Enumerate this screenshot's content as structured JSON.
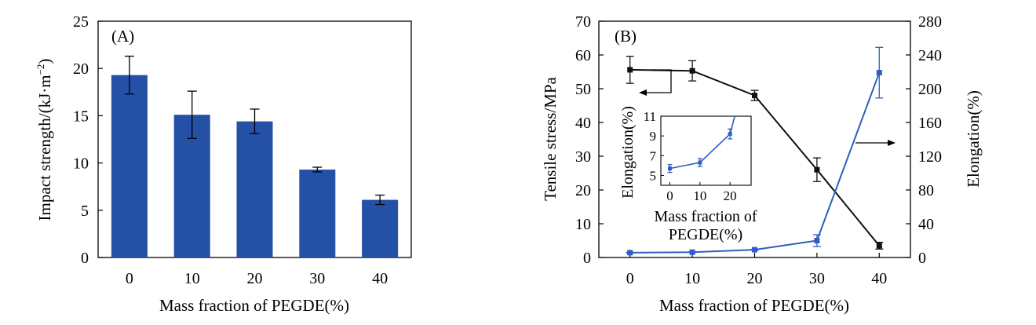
{
  "chart_data": [
    {
      "panel_label": "(A)",
      "type": "bar",
      "categories": [
        "0",
        "10",
        "20",
        "30",
        "40"
      ],
      "values": [
        19.3,
        15.1,
        14.4,
        9.3,
        6.1
      ],
      "errors": [
        2.0,
        2.5,
        1.3,
        0.25,
        0.5
      ],
      "xlabel": "Mass fraction of PEGDE(%)",
      "ylabel": "Impact strength/(kJ·m",
      "ylabel_sup": "−2",
      "ylabel_close": ")",
      "ylim": [
        0,
        25
      ],
      "yticks": [
        0,
        5,
        10,
        15,
        20,
        25
      ],
      "bar_color": "#2451a6"
    },
    {
      "panel_label": "(B)",
      "type": "line",
      "x": [
        0,
        10,
        20,
        30,
        40
      ],
      "xticks": [
        0,
        10,
        20,
        30,
        40
      ],
      "xlim": [
        -5,
        45
      ],
      "xlabel": "Mass fraction of PEGDE(%)",
      "ylabel_left": "Tensile stress/MPa",
      "ylabel_right": "Elongation(%)",
      "ylim_left": [
        0,
        70
      ],
      "yticks_left": [
        0,
        10,
        20,
        30,
        40,
        50,
        60,
        70
      ],
      "ylim_right": [
        0,
        280
      ],
      "yticks_right": [
        0,
        40,
        80,
        120,
        160,
        200,
        240,
        280
      ],
      "series": [
        {
          "name": "Tensile stress",
          "axis": "left",
          "color": "#111111",
          "values": [
            55.6,
            55.3,
            48.0,
            26.0,
            3.5
          ],
          "errors": [
            4.0,
            3.0,
            1.5,
            3.5,
            1.0
          ]
        },
        {
          "name": "Elongation",
          "axis": "right",
          "color": "#2e5ebf",
          "values": [
            5.7,
            6.3,
            9.2,
            20.0,
            219.0
          ],
          "errors": [
            0.4,
            0.4,
            0.5,
            7.0,
            30.0
          ]
        }
      ],
      "inset": {
        "x": [
          0,
          10,
          20
        ],
        "values": [
          5.7,
          6.3,
          9.2
        ],
        "errors": [
          0.4,
          0.4,
          0.5
        ],
        "xticks": [
          0,
          10,
          20
        ],
        "yticks": [
          5,
          7,
          9,
          11
        ],
        "xlim": [
          -3,
          27
        ],
        "ylim": [
          4,
          11
        ],
        "ylabel": "Elongation(%)",
        "xlabel_line1": "Mass fraction of",
        "xlabel_line2": "PEGDE(%)"
      }
    }
  ]
}
